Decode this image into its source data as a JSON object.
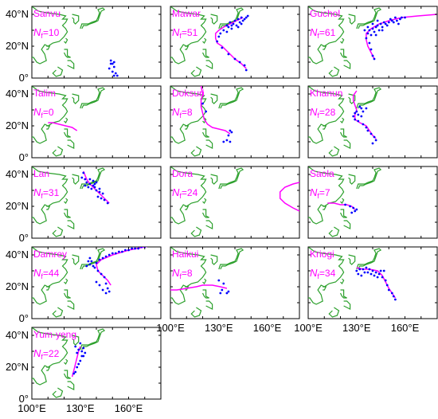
{
  "chart_data": {
    "type": "scatter",
    "x_range": [
      100,
      180
    ],
    "y_range": [
      0,
      45
    ],
    "x_ticks": [
      "100°E",
      "130°E",
      "160°E"
    ],
    "y_ticks": [
      "0°",
      "20°N",
      "40°N"
    ],
    "colors": {
      "track": "#ff00ff",
      "points": "#0000ff",
      "coast": "#2ca02c"
    },
    "panels": [
      {
        "name": "Sanvu",
        "nf": "10",
        "track": [],
        "points": [
          [
            149,
            11
          ],
          [
            150,
            9
          ],
          [
            151,
            7
          ],
          [
            148,
            6
          ],
          [
            150,
            4
          ],
          [
            152,
            3
          ],
          [
            151,
            1.5
          ],
          [
            153,
            1.5
          ],
          [
            149,
            9
          ],
          [
            151,
            10
          ]
        ]
      },
      {
        "name": "Mawar",
        "nf": "51",
        "track": [
          [
            147,
            6
          ],
          [
            144,
            9
          ],
          [
            140,
            12
          ],
          [
            136,
            16
          ],
          [
            132,
            20
          ],
          [
            129,
            22
          ],
          [
            128,
            25
          ],
          [
            128,
            28
          ],
          [
            130,
            30
          ],
          [
            133,
            32
          ],
          [
            137,
            34
          ],
          [
            141,
            36
          ],
          [
            145,
            38
          ]
        ],
        "points": [
          [
            135,
            33
          ],
          [
            137,
            35
          ],
          [
            140,
            36
          ],
          [
            142,
            37
          ],
          [
            144,
            38
          ],
          [
            146,
            37
          ],
          [
            143,
            35
          ],
          [
            139,
            34
          ],
          [
            136,
            32
          ],
          [
            133,
            30
          ],
          [
            131,
            28
          ],
          [
            135,
            29
          ],
          [
            138,
            31
          ],
          [
            141,
            33
          ],
          [
            145,
            36
          ],
          [
            147,
            38
          ],
          [
            148,
            39
          ],
          [
            130,
            26
          ],
          [
            129,
            23
          ],
          [
            132,
            19
          ],
          [
            136,
            15
          ],
          [
            140,
            12
          ],
          [
            143,
            10
          ],
          [
            146,
            8
          ],
          [
            147,
            5
          ],
          [
            144,
            34
          ],
          [
            142,
            32
          ],
          [
            138,
            33
          ]
        ]
      },
      {
        "name": "Guchol",
        "nf": "61",
        "track": [
          [
            141,
            12
          ],
          [
            139,
            16
          ],
          [
            137,
            20
          ],
          [
            136,
            24
          ],
          [
            136,
            28
          ],
          [
            139,
            31
          ],
          [
            144,
            34
          ],
          [
            150,
            36
          ],
          [
            158,
            38
          ],
          [
            168,
            39
          ],
          [
            180,
            40
          ]
        ],
        "points": [
          [
            136,
            25
          ],
          [
            137,
            28
          ],
          [
            138,
            30
          ],
          [
            140,
            31
          ],
          [
            142,
            32
          ],
          [
            141,
            29
          ],
          [
            139,
            27
          ],
          [
            143,
            33
          ],
          [
            145,
            34
          ],
          [
            147,
            35
          ],
          [
            146,
            32
          ],
          [
            144,
            30
          ],
          [
            148,
            34
          ],
          [
            150,
            35
          ],
          [
            152,
            36
          ],
          [
            149,
            33
          ],
          [
            153,
            35
          ],
          [
            155,
            36
          ],
          [
            157,
            37
          ],
          [
            154,
            38
          ],
          [
            158,
            38
          ],
          [
            160,
            38
          ],
          [
            156,
            34
          ],
          [
            151,
            37
          ],
          [
            143,
            36
          ],
          [
            140,
            34
          ],
          [
            137,
            32
          ],
          [
            138,
            22
          ],
          [
            139,
            18
          ],
          [
            140,
            14
          ],
          [
            141,
            12
          ],
          [
            135,
            30
          ],
          [
            142,
            27
          ],
          [
            146,
            30
          ]
        ]
      },
      {
        "name": "Talim",
        "nf": "0",
        "track": [
          [
            110,
            22
          ],
          [
            113,
            22
          ],
          [
            117,
            21
          ],
          [
            121,
            20
          ],
          [
            125,
            19
          ],
          [
            128,
            17
          ]
        ],
        "points": []
      },
      {
        "name": "Doksuri",
        "nf": "8",
        "track": [
          [
            119,
            45
          ],
          [
            120,
            40
          ],
          [
            119,
            36
          ],
          [
            119,
            32
          ],
          [
            120,
            28
          ],
          [
            121,
            24
          ],
          [
            123,
            21
          ],
          [
            126,
            19
          ],
          [
            130,
            18
          ],
          [
            134,
            17
          ],
          [
            137,
            15
          ]
        ],
        "points": [
          [
            137,
            17
          ],
          [
            138,
            16
          ],
          [
            136,
            14
          ],
          [
            135,
            11
          ],
          [
            137,
            10
          ],
          [
            133,
            10
          ],
          [
            122,
            29
          ],
          [
            120,
            34
          ]
        ]
      },
      {
        "name": "Khanun",
        "nf": "28",
        "track": [
          [
            130,
            42
          ],
          [
            128,
            39
          ],
          [
            128,
            36
          ],
          [
            129,
            33
          ],
          [
            130,
            30
          ],
          [
            129,
            27
          ],
          [
            129,
            24
          ],
          [
            132,
            22
          ],
          [
            136,
            20
          ],
          [
            138,
            17
          ],
          [
            140,
            14
          ],
          [
            142,
            12
          ]
        ],
        "points": [
          [
            132,
            32
          ],
          [
            130,
            29
          ],
          [
            128,
            26
          ],
          [
            129,
            24
          ],
          [
            131,
            23
          ],
          [
            134,
            21
          ],
          [
            136,
            19
          ],
          [
            137,
            17
          ],
          [
            139,
            15
          ],
          [
            141,
            13
          ],
          [
            142,
            11
          ],
          [
            140,
            9
          ],
          [
            129,
            28
          ],
          [
            131,
            27
          ],
          [
            133,
            26
          ],
          [
            134,
            29
          ],
          [
            133,
            31
          ],
          [
            136,
            31
          ]
        ]
      },
      {
        "name": "Lan",
        "nf": "31",
        "track": [
          [
            132,
            42
          ],
          [
            134,
            37
          ],
          [
            136,
            34
          ],
          [
            139,
            31
          ],
          [
            142,
            28
          ],
          [
            145,
            25
          ],
          [
            148,
            22
          ]
        ],
        "points": [
          [
            133,
            37
          ],
          [
            134,
            35
          ],
          [
            136,
            34
          ],
          [
            138,
            33
          ],
          [
            135,
            32
          ],
          [
            133,
            33
          ],
          [
            137,
            31
          ],
          [
            139,
            32
          ],
          [
            140,
            30
          ],
          [
            142,
            29
          ],
          [
            141,
            26
          ],
          [
            143,
            25
          ],
          [
            145,
            24
          ],
          [
            147,
            22
          ],
          [
            139,
            34
          ],
          [
            140,
            35
          ],
          [
            138,
            36
          ],
          [
            136,
            37
          ],
          [
            131,
            38
          ],
          [
            132,
            41
          ],
          [
            142,
            31
          ],
          [
            144,
            28
          ]
        ]
      },
      {
        "name": "Dora",
        "nf": "24",
        "track": [
          [
            180,
            17
          ],
          [
            176,
            19
          ],
          [
            171,
            22
          ],
          [
            168,
            25
          ],
          [
            168,
            29
          ],
          [
            171,
            32
          ],
          [
            176,
            34
          ],
          [
            180,
            35
          ]
        ],
        "points": []
      },
      {
        "name": "Saola",
        "nf": "7",
        "track": [
          [
            112,
            22
          ],
          [
            116,
            22
          ],
          [
            120,
            21
          ],
          [
            124,
            21
          ],
          [
            127,
            20
          ],
          [
            129,
            18
          ]
        ],
        "points": [
          [
            123,
            21
          ],
          [
            126,
            20
          ],
          [
            128,
            19
          ],
          [
            130,
            18
          ],
          [
            129,
            17
          ],
          [
            127,
            16
          ]
        ]
      },
      {
        "name": "Damrey",
        "nf": "44",
        "track": [
          [
            180,
            47
          ],
          [
            170,
            45
          ],
          [
            160,
            43
          ],
          [
            150,
            40
          ],
          [
            143,
            37
          ],
          [
            140,
            34
          ],
          [
            141,
            30
          ],
          [
            144,
            27
          ],
          [
            147,
            24
          ],
          [
            149,
            21
          ]
        ],
        "points": [
          [
            137,
            36
          ],
          [
            136,
            34
          ],
          [
            138,
            33
          ],
          [
            140,
            35
          ],
          [
            142,
            37
          ],
          [
            144,
            38
          ],
          [
            146,
            39
          ],
          [
            148,
            40
          ],
          [
            150,
            41
          ],
          [
            152,
            41
          ],
          [
            154,
            42
          ],
          [
            156,
            42
          ],
          [
            158,
            43
          ],
          [
            160,
            43
          ],
          [
            162,
            44
          ],
          [
            164,
            44
          ],
          [
            166,
            44
          ],
          [
            168,
            45
          ],
          [
            170,
            45
          ],
          [
            139,
            32
          ],
          [
            141,
            30
          ],
          [
            143,
            28
          ],
          [
            145,
            26
          ],
          [
            146,
            22
          ],
          [
            147,
            19
          ],
          [
            148,
            17
          ],
          [
            146,
            16
          ],
          [
            144,
            18
          ],
          [
            142,
            21
          ],
          [
            140,
            23
          ],
          [
            136,
            38
          ],
          [
            135,
            36
          ],
          [
            134,
            33
          ]
        ]
      },
      {
        "name": "Haikui",
        "nf": "8",
        "track": [
          [
            100,
            18
          ],
          [
            104,
            18
          ],
          [
            110,
            19
          ],
          [
            116,
            20
          ],
          [
            120,
            21
          ],
          [
            126,
            21
          ],
          [
            131,
            20
          ],
          [
            135,
            19
          ]
        ],
        "points": [
          [
            130,
            24
          ],
          [
            133,
            22
          ],
          [
            132,
            18
          ],
          [
            135,
            16
          ],
          [
            136,
            17
          ],
          [
            131,
            16
          ]
        ]
      },
      {
        "name": "Kriogi",
        "nf": "34",
        "track": [
          [
            130,
            32
          ],
          [
            134,
            31
          ],
          [
            138,
            31
          ],
          [
            143,
            30
          ],
          [
            146,
            27
          ],
          [
            148,
            23
          ],
          [
            150,
            19
          ],
          [
            152,
            16
          ],
          [
            154,
            13
          ]
        ],
        "points": [
          [
            130,
            30
          ],
          [
            132,
            31
          ],
          [
            134,
            31
          ],
          [
            136,
            32
          ],
          [
            138,
            31
          ],
          [
            140,
            30
          ],
          [
            142,
            29
          ],
          [
            144,
            28
          ],
          [
            146,
            26
          ],
          [
            148,
            24
          ],
          [
            149,
            21
          ],
          [
            150,
            18
          ],
          [
            152,
            16
          ],
          [
            153,
            14
          ],
          [
            154,
            12
          ],
          [
            131,
            28
          ],
          [
            133,
            27
          ],
          [
            135,
            29
          ],
          [
            137,
            29
          ],
          [
            139,
            28
          ],
          [
            141,
            27
          ],
          [
            143,
            26
          ],
          [
            145,
            30
          ],
          [
            147,
            30
          ]
        ]
      },
      {
        "name": "Yum-yeng",
        "nf": "22",
        "track": [
          [
            130,
            33
          ],
          [
            129,
            30
          ],
          [
            128,
            26
          ],
          [
            127,
            22
          ],
          [
            126,
            18
          ],
          [
            125,
            14
          ]
        ],
        "points": [
          [
            127,
            33
          ],
          [
            129,
            31
          ],
          [
            131,
            30
          ],
          [
            132,
            32
          ],
          [
            133,
            29
          ],
          [
            131,
            27
          ],
          [
            130,
            24
          ],
          [
            129,
            22
          ],
          [
            128,
            20
          ],
          [
            127,
            17
          ],
          [
            126,
            16
          ],
          [
            130,
            35
          ],
          [
            128,
            29
          ],
          [
            132,
            27
          ]
        ]
      }
    ]
  }
}
